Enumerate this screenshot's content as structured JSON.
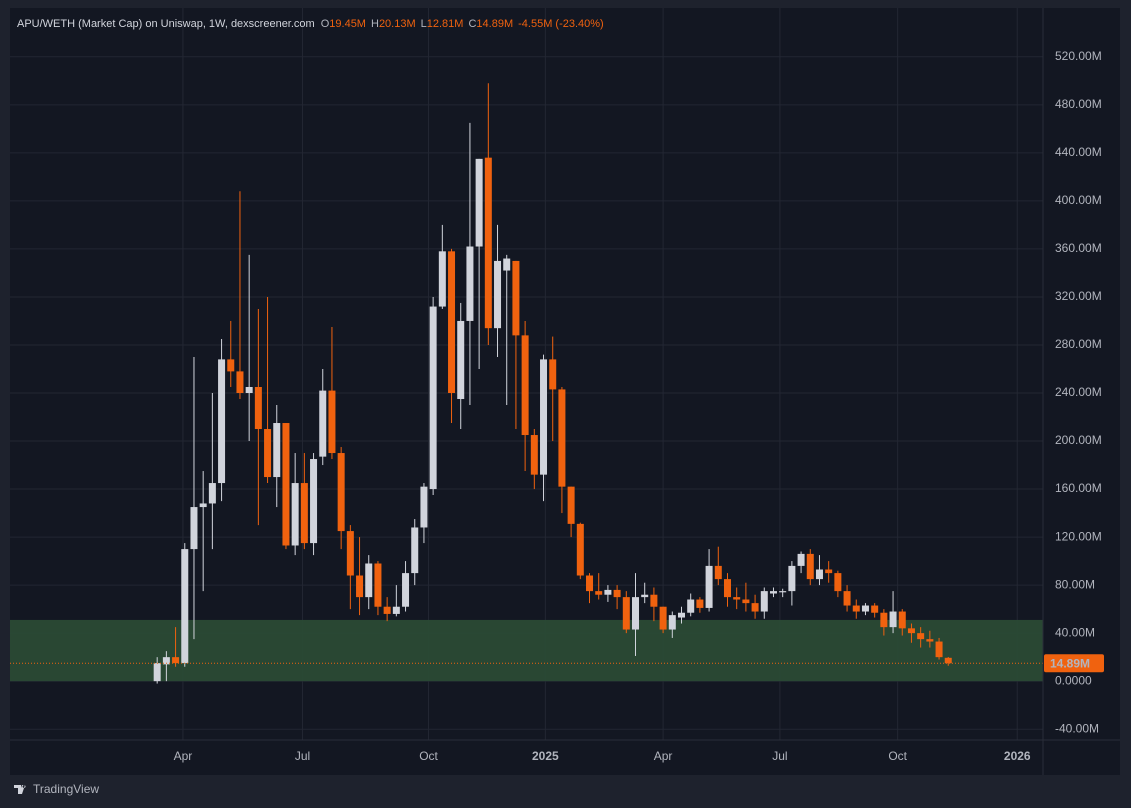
{
  "chart_data": {
    "type": "candlestick",
    "title": "APU/WETH (Market Cap) on Uniswap, 1W, dexscreener.com",
    "legend": [
      {
        "key": "O",
        "value": "19.45M"
      },
      {
        "key": "H",
        "value": "20.13M"
      },
      {
        "key": "L",
        "value": "12.81M"
      },
      {
        "key": "C",
        "value": "14.89M"
      }
    ],
    "change": "-4.55M (-23.40%)",
    "categories": [
      null,
      null,
      null,
      null,
      null,
      null,
      null,
      null,
      null,
      null,
      null,
      null,
      null,
      null,
      null,
      null,
      null,
      null,
      null,
      null,
      null,
      null,
      null,
      null,
      null,
      null,
      null,
      null,
      null,
      null,
      null,
      null,
      null,
      null,
      null,
      null,
      null,
      null,
      null,
      null,
      null,
      null,
      null,
      null,
      null,
      null,
      null,
      null,
      null,
      null,
      null,
      null,
      null,
      null,
      null,
      null,
      null,
      null,
      null,
      null,
      null,
      null,
      null,
      null,
      null,
      null,
      null,
      null,
      null,
      null,
      null,
      null,
      null,
      null,
      null,
      null,
      null,
      null,
      null,
      null,
      null,
      null,
      null,
      null,
      null,
      null,
      null
    ],
    "open": [
      0,
      14,
      20,
      15,
      110,
      145,
      148,
      165,
      268,
      258,
      240,
      245,
      210,
      170,
      215,
      113,
      165,
      115,
      187,
      242,
      190,
      125,
      88,
      70,
      98,
      62,
      56,
      62,
      90,
      128,
      160,
      312,
      358,
      235,
      300,
      362,
      436,
      294,
      342,
      350,
      288,
      205,
      172,
      268,
      243,
      162,
      131,
      88,
      75,
      72,
      76,
      70,
      43,
      70,
      72,
      62,
      43,
      53,
      57,
      68,
      61,
      96,
      85,
      70,
      68,
      65,
      58,
      73,
      74,
      75,
      96,
      106,
      85,
      93,
      90,
      75,
      63,
      58,
      63,
      57,
      45,
      58,
      44,
      40,
      35,
      33,
      19.45
    ],
    "high": [
      20,
      25,
      45,
      115,
      270,
      175,
      240,
      285,
      300,
      408,
      355,
      310,
      320,
      230,
      215,
      190,
      190,
      190,
      260,
      295,
      195,
      130,
      120,
      105,
      100,
      70,
      80,
      100,
      135,
      165,
      320,
      380,
      360,
      315,
      465,
      435,
      498,
      380,
      355,
      350,
      300,
      210,
      272,
      287,
      245,
      162,
      132,
      90,
      90,
      80,
      80,
      75,
      90,
      82,
      78,
      62,
      58,
      62,
      73,
      70,
      110,
      112,
      90,
      78,
      82,
      72,
      78,
      78,
      77,
      100,
      108,
      110,
      105,
      100,
      92,
      80,
      68,
      65,
      65,
      60,
      75,
      60,
      48,
      45,
      42,
      36,
      20.13
    ],
    "low": [
      -2,
      0,
      12,
      12,
      35,
      75,
      110,
      150,
      245,
      235,
      200,
      130,
      165,
      145,
      110,
      105,
      110,
      105,
      180,
      185,
      110,
      60,
      55,
      60,
      55,
      50,
      54,
      58,
      80,
      115,
      155,
      310,
      215,
      210,
      230,
      260,
      280,
      270,
      230,
      210,
      175,
      160,
      150,
      200,
      140,
      120,
      85,
      65,
      68,
      66,
      60,
      40,
      21,
      65,
      50,
      40,
      36,
      48,
      54,
      57,
      58,
      80,
      62,
      60,
      58,
      52,
      52,
      70,
      70,
      63,
      90,
      80,
      80,
      82,
      70,
      58,
      52,
      55,
      53,
      38,
      40,
      38,
      32,
      28,
      28,
      18,
      12.81
    ],
    "close": [
      15,
      20,
      15,
      110,
      145,
      148,
      165,
      268,
      258,
      240,
      245,
      210,
      170,
      215,
      113,
      165,
      115,
      185,
      242,
      190,
      125,
      88,
      70,
      98,
      62,
      56,
      62,
      90,
      128,
      162,
      312,
      358,
      240,
      300,
      362,
      435,
      294,
      350,
      352,
      288,
      205,
      172,
      268,
      243,
      162,
      131,
      88,
      75,
      72,
      76,
      70,
      43,
      70,
      72,
      62,
      43,
      55,
      57,
      68,
      61,
      96,
      85,
      70,
      68,
      65,
      58,
      75,
      75,
      75,
      96,
      106,
      85,
      93,
      90,
      75,
      63,
      58,
      63,
      57,
      45,
      58,
      44,
      40,
      35,
      33,
      20,
      14.89
    ],
    "up_color": "#d1d4dc",
    "down_color": "#f0620f",
    "ylim": [
      -49,
      534
    ],
    "yticks": [
      {
        "value": -40,
        "label": "-40.00M"
      },
      {
        "value": 0,
        "label": "0.0000"
      },
      {
        "value": 40,
        "label": "40.00M"
      },
      {
        "value": 80,
        "label": "80.00M"
      },
      {
        "value": 120,
        "label": "120.00M"
      },
      {
        "value": 160,
        "label": "160.00M"
      },
      {
        "value": 200,
        "label": "200.00M"
      },
      {
        "value": 240,
        "label": "240.00M"
      },
      {
        "value": 280,
        "label": "280.00M"
      },
      {
        "value": 320,
        "label": "320.00M"
      },
      {
        "value": 360,
        "label": "360.00M"
      },
      {
        "value": 400,
        "label": "400.00M"
      },
      {
        "value": 440,
        "label": "440.00M"
      },
      {
        "value": 480,
        "label": "480.00M"
      },
      {
        "value": 520,
        "label": "520.00M"
      }
    ],
    "xlim": [
      -16,
      96.3
    ],
    "xticks": [
      {
        "value": 2.8,
        "label": "Apr"
      },
      {
        "value": 15.8,
        "label": "Jul"
      },
      {
        "value": 29.5,
        "label": "Oct"
      },
      {
        "value": 42.2,
        "label": "2025"
      },
      {
        "value": 55,
        "label": "Apr"
      },
      {
        "value": 67.7,
        "label": "Jul"
      },
      {
        "value": 80.5,
        "label": "Oct"
      },
      {
        "value": 93.5,
        "label": "2026"
      }
    ],
    "highlight_band": [
      0,
      51
    ],
    "last_price": {
      "value": 14.89,
      "label": "14.89M"
    },
    "grid": true
  },
  "footer": {
    "brand": "TradingView"
  }
}
